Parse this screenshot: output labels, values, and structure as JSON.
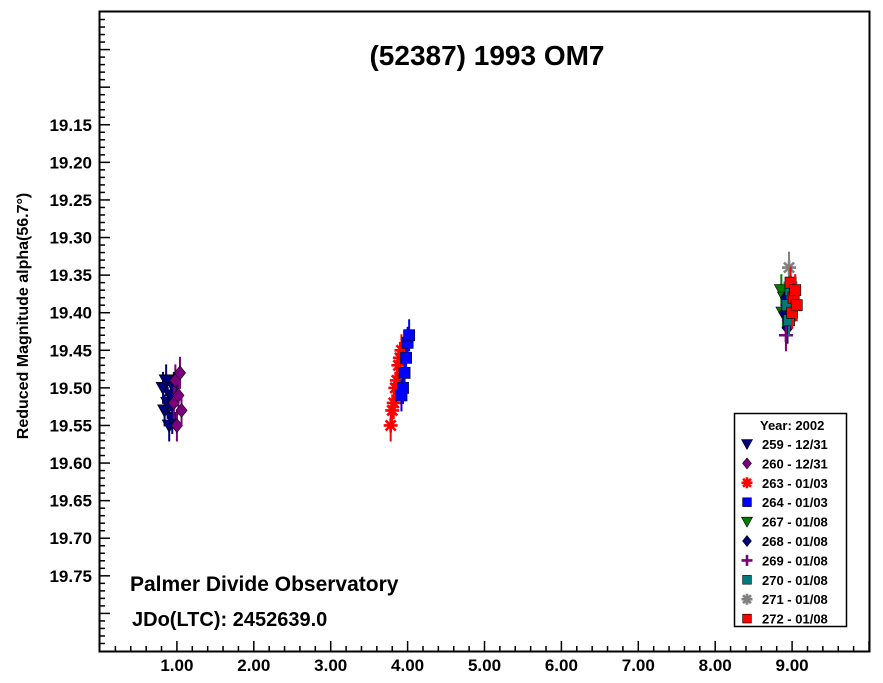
{
  "chart_data": {
    "type": "scatter",
    "title": "(52387) 1993 OM7",
    "xlabel": "",
    "ylabel": "Reduced Magnitude alpha(56.7°)",
    "xlim": [
      0.0,
      10.0
    ],
    "ylim": [
      19.85,
      19.0
    ],
    "y_inverted": true,
    "x_ticks": [
      "1.00",
      "2.00",
      "3.00",
      "4.00",
      "5.00",
      "6.00",
      "7.00",
      "8.00",
      "9.00"
    ],
    "y_ticks": [
      "19.15",
      "19.20",
      "19.25",
      "19.30",
      "19.35",
      "19.40",
      "19.45",
      "19.50",
      "19.55",
      "19.60",
      "19.65",
      "19.70",
      "19.75"
    ],
    "annotations": [
      "Palmer Divide Observatory",
      "JDo(LTC): 2452639.0"
    ],
    "legend": {
      "title": "Year: 2002",
      "placement": "bottom-right"
    },
    "series": [
      {
        "name": "259 - 12/31",
        "color": "#00007b",
        "marker": "triangle-down",
        "x": [
          0.82,
          0.84,
          0.86,
          0.88,
          0.9,
          0.92,
          0.94,
          0.96
        ],
        "y": [
          19.5,
          19.53,
          19.49,
          19.52,
          19.55,
          19.51,
          19.54,
          19.5
        ]
      },
      {
        "name": "260 - 12/31",
        "color": "#7b007b",
        "marker": "diamond",
        "x": [
          0.96,
          0.98,
          1.0,
          1.02,
          1.04,
          1.06
        ],
        "y": [
          19.52,
          19.49,
          19.55,
          19.51,
          19.48,
          19.53
        ]
      },
      {
        "name": "263 - 01/03",
        "color": "#ff0000",
        "marker": "asterisk",
        "x": [
          3.78,
          3.8,
          3.82,
          3.84,
          3.86,
          3.88,
          3.9,
          3.92
        ],
        "y": [
          19.55,
          19.53,
          19.52,
          19.5,
          19.49,
          19.47,
          19.46,
          19.45
        ]
      },
      {
        "name": "264 - 01/03",
        "color": "#0000ff",
        "marker": "square",
        "x": [
          3.92,
          3.94,
          3.96,
          3.98,
          4.0,
          4.02
        ],
        "y": [
          19.51,
          19.5,
          19.48,
          19.46,
          19.44,
          19.43
        ]
      },
      {
        "name": "267 - 01/08",
        "color": "#007b00",
        "marker": "triangle-down",
        "x": [
          8.86,
          8.88,
          8.9
        ],
        "y": [
          19.37,
          19.4,
          19.38
        ]
      },
      {
        "name": "268 - 01/08",
        "color": "#00007b",
        "marker": "diamond",
        "x": [
          8.9,
          8.92,
          8.94
        ],
        "y": [
          19.4,
          19.38,
          19.42
        ]
      },
      {
        "name": "269 - 01/08",
        "color": "#7b007b",
        "marker": "plus",
        "x": [
          8.92,
          8.94,
          8.96
        ],
        "y": [
          19.43,
          19.39,
          19.41
        ]
      },
      {
        "name": "270 - 01/08",
        "color": "#007b7b",
        "marker": "square",
        "x": [
          8.94,
          8.96,
          8.98
        ],
        "y": [
          19.39,
          19.41,
          19.37
        ]
      },
      {
        "name": "271 - 01/08",
        "color": "#808080",
        "marker": "asterisk",
        "x": [
          8.96,
          8.98
        ],
        "y": [
          19.34,
          19.36
        ]
      },
      {
        "name": "272 - 01/08",
        "color": "#ff0000",
        "marker": "square",
        "x": [
          8.98,
          9.0,
          9.02,
          9.04,
          9.06
        ],
        "y": [
          19.36,
          19.4,
          19.38,
          19.37,
          19.39
        ]
      }
    ]
  }
}
